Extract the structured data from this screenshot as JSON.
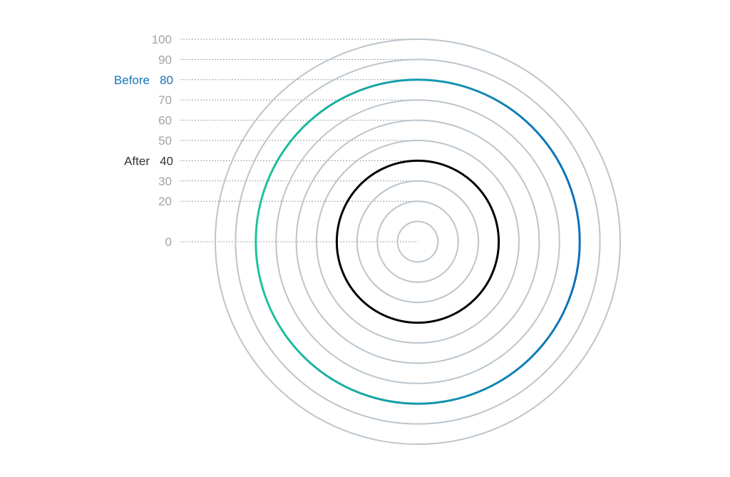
{
  "chart_data": {
    "type": "radial-rings",
    "title": "",
    "rings": [
      10,
      20,
      30,
      40,
      50,
      60,
      70,
      80,
      90,
      100
    ],
    "ticks": [
      0,
      20,
      30,
      40,
      50,
      60,
      70,
      80,
      90,
      100
    ],
    "range": [
      0,
      100
    ],
    "grid": true,
    "series": [
      {
        "name": "Before",
        "value": 80,
        "color_start": "#1fc39b",
        "color_end": "#0a6fba",
        "label_color": "#1474b8"
      },
      {
        "name": "After",
        "value": 40,
        "color": "#000000",
        "label_color": "#333333"
      }
    ],
    "colors": {
      "ring": "#bcc5cc",
      "grid_line": "#9aa0a6",
      "tick_label": "#a3a3a3"
    }
  }
}
